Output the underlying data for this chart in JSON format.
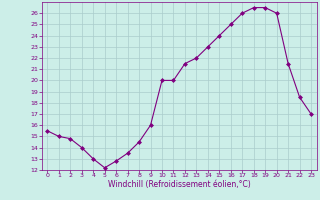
{
  "x": [
    0,
    1,
    2,
    3,
    4,
    5,
    6,
    7,
    8,
    9,
    10,
    11,
    12,
    13,
    14,
    15,
    16,
    17,
    18,
    19,
    20,
    21,
    22,
    23
  ],
  "y": [
    15.5,
    15.0,
    14.8,
    14.0,
    13.0,
    12.2,
    12.8,
    13.5,
    14.5,
    16.0,
    20.0,
    20.0,
    21.5,
    22.0,
    23.0,
    24.0,
    25.0,
    26.0,
    26.5,
    26.5,
    26.0,
    21.5,
    18.5,
    17.0
  ],
  "line_color": "#800080",
  "marker": "D",
  "marker_size": 2.0,
  "background_color": "#cceee8",
  "grid_color": "#aacccc",
  "xlabel": "Windchill (Refroidissement éolien,°C)",
  "xlim": [
    -0.5,
    23.5
  ],
  "ylim": [
    12,
    27
  ],
  "yticks": [
    12,
    13,
    14,
    15,
    16,
    17,
    18,
    19,
    20,
    21,
    22,
    23,
    24,
    25,
    26
  ],
  "xticks": [
    0,
    1,
    2,
    3,
    4,
    5,
    6,
    7,
    8,
    9,
    10,
    11,
    12,
    13,
    14,
    15,
    16,
    17,
    18,
    19,
    20,
    21,
    22,
    23
  ],
  "tick_color": "#800080",
  "label_color": "#800080",
  "tick_fontsize": 4.5,
  "xlabel_fontsize": 5.5,
  "linewidth": 0.8
}
